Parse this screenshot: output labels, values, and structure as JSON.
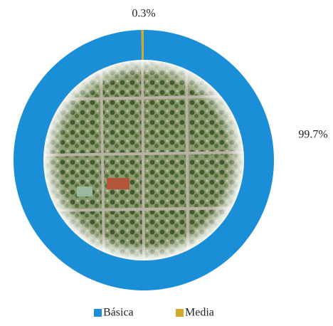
{
  "chart_data": {
    "type": "donut",
    "categories": [
      "Básica",
      "Media"
    ],
    "values": [
      99.7,
      0.3
    ],
    "value_labels": [
      "99.7%",
      "0.3%"
    ],
    "colors": [
      "#1a8fd8",
      "#d4a92a"
    ],
    "legend": "bottom"
  }
}
